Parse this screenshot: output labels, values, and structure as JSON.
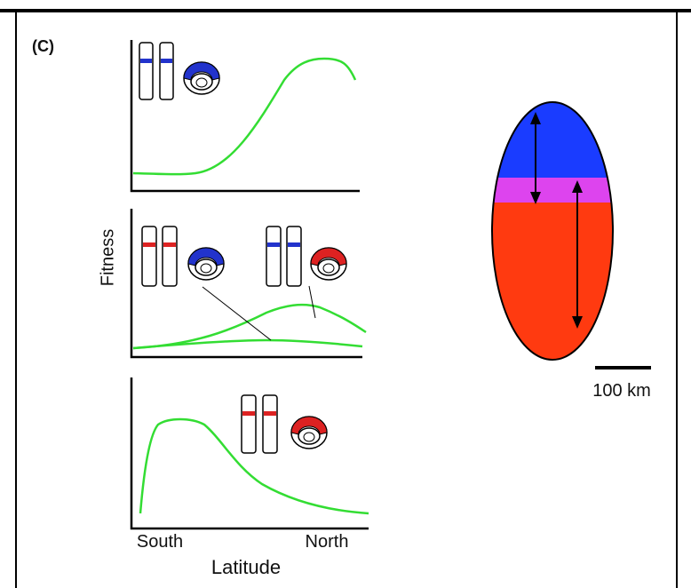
{
  "panel_label": "(C)",
  "y_axis_label": "Fitness",
  "x_tick_labels": [
    "South",
    "North"
  ],
  "x_axis_label": "Latitude",
  "scale_bar_label": "100 km"
}
